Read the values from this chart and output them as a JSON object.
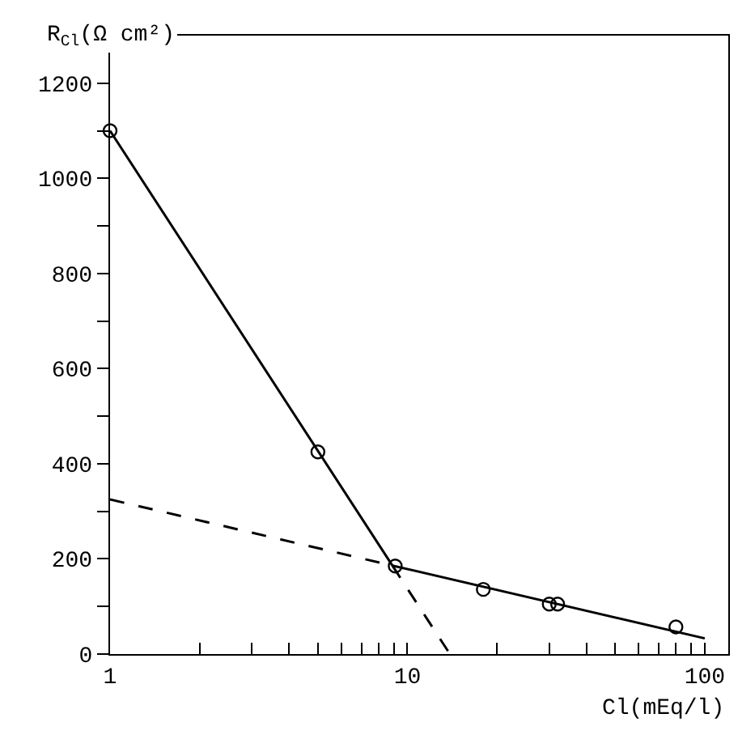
{
  "chart_data": {
    "type": "scatter",
    "xlabel": "Cl(mEq/l)",
    "ylabel": "R$_{Cl}$(Ω cm²)",
    "log": "x",
    "xlim": [
      1,
      120
    ],
    "ylim": [
      0,
      1300
    ],
    "xticks": [
      1,
      {
        "value": 2,
        "label": null
      },
      {
        "value": 3,
        "label": null
      },
      {
        "value": 4,
        "label": null
      },
      {
        "value": 5,
        "label": null
      },
      {
        "value": 6,
        "label": null
      },
      {
        "value": 7,
        "label": null
      },
      {
        "value": 8,
        "label": null
      },
      {
        "value": 9,
        "label": null
      },
      10,
      {
        "value": 20,
        "label": null
      },
      {
        "value": 30,
        "label": null
      },
      {
        "value": 40,
        "label": null
      },
      {
        "value": 50,
        "label": null
      },
      {
        "value": 60,
        "label": null
      },
      {
        "value": 70,
        "label": null
      },
      {
        "value": 80,
        "label": null
      },
      {
        "value": 90,
        "label": null
      },
      100
    ],
    "yticks": [
      0,
      {
        "value": 100,
        "label": null
      },
      200,
      {
        "value": 300,
        "label": null
      },
      400,
      {
        "value": 500,
        "label": null
      },
      600,
      {
        "value": 700,
        "label": null
      },
      800,
      {
        "value": 900,
        "label": null
      },
      1000,
      {
        "value": 1100,
        "label": null
      },
      1200
    ],
    "grid": false,
    "series": [
      {
        "color": "#000000",
        "marker": "circle",
        "x": [
          1,
          5,
          9.1,
          18,
          30,
          32,
          80
        ],
        "values": [
          1100,
          425,
          185,
          136,
          105,
          105,
          57
        ]
      },
      {
        "type": "line",
        "color": "#000000",
        "line_style": "solid",
        "marker": "none",
        "x": [
          1,
          8.9
        ],
        "values": [
          1100,
          186
        ]
      },
      {
        "type": "line",
        "color": "#000000",
        "line_style": "dashed",
        "marker": "none",
        "x": [
          8.9,
          13.9
        ],
        "values": [
          186,
          0
        ]
      },
      {
        "type": "line",
        "color": "#000000",
        "line_style": "dashed",
        "marker": "none",
        "x": [
          1,
          8.9
        ],
        "values": [
          325,
          186
        ]
      },
      {
        "type": "line",
        "color": "#000000",
        "line_style": "solid",
        "marker": "none",
        "x": [
          8.9,
          100
        ],
        "values": [
          186,
          33
        ]
      }
    ]
  }
}
